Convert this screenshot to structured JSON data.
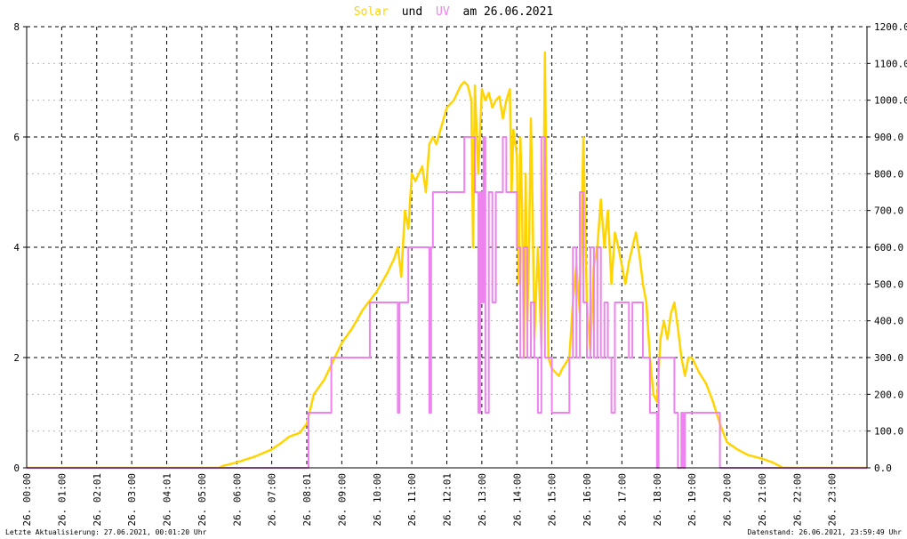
{
  "title": {
    "solar": "Solar",
    "und": "und",
    "uv": "UV",
    "rest": "am 26.06.2021"
  },
  "footer": {
    "left": "Letzte Aktualisierung: 27.06.2021, 00:01:20 Uhr",
    "right": "Datenstand: 26.06.2021, 23:59:49 Uhr"
  },
  "colors": {
    "solar": "#ffd400",
    "uv": "#ee82ee",
    "grid": "#000000",
    "minor_grid": "#bbbbbb"
  },
  "chart_data": {
    "type": "line",
    "y_left": {
      "ticks": [
        "0",
        "2",
        "4",
        "6",
        "8"
      ],
      "range": [
        0,
        8
      ]
    },
    "y_right": {
      "ticks": [
        "0.0",
        "100.0",
        "200.0",
        "300.0",
        "400.0",
        "500.0",
        "600.0",
        "700.0",
        "800.0",
        "900.0",
        "1000.0",
        "1100.0",
        "1200.0"
      ],
      "range": [
        0,
        1200
      ]
    },
    "x_range_hours": [
      0,
      24
    ],
    "x_ticks": [
      {
        "h": 0,
        "label": "26. 00:00"
      },
      {
        "h": 1,
        "label": "26. 01:00"
      },
      {
        "h": 2,
        "label": "26. 02:01"
      },
      {
        "h": 3,
        "label": "26. 03:00"
      },
      {
        "h": 4,
        "label": "26. 04:01"
      },
      {
        "h": 5,
        "label": "26. 05:00"
      },
      {
        "h": 6,
        "label": "26. 06:00"
      },
      {
        "h": 7,
        "label": "26. 07:00"
      },
      {
        "h": 8,
        "label": "26. 08:01"
      },
      {
        "h": 9,
        "label": "26. 09:00"
      },
      {
        "h": 10,
        "label": "26. 10:00"
      },
      {
        "h": 11,
        "label": "26. 11:00"
      },
      {
        "h": 12,
        "label": "26. 12:01"
      },
      {
        "h": 13,
        "label": "26. 13:00"
      },
      {
        "h": 14,
        "label": "26. 14:00"
      },
      {
        "h": 15,
        "label": "26. 15:00"
      },
      {
        "h": 16,
        "label": "26. 16:00"
      },
      {
        "h": 17,
        "label": "26. 17:00"
      },
      {
        "h": 18,
        "label": "26. 18:00"
      },
      {
        "h": 19,
        "label": "26. 19:00"
      },
      {
        "h": 20,
        "label": "26. 20:00"
      },
      {
        "h": 21,
        "label": "26. 21:00"
      },
      {
        "h": 22,
        "label": "26. 22:00"
      },
      {
        "h": 23,
        "label": "26. 23:00"
      }
    ],
    "series": [
      {
        "name": "Solar",
        "axis": "right",
        "points": [
          [
            0,
            0
          ],
          [
            5.5,
            0
          ],
          [
            5.6,
            5
          ],
          [
            6,
            15
          ],
          [
            6.5,
            30
          ],
          [
            7,
            50
          ],
          [
            7.3,
            70
          ],
          [
            7.5,
            85
          ],
          [
            7.8,
            95
          ],
          [
            8,
            120
          ],
          [
            8.2,
            200
          ],
          [
            8.5,
            240
          ],
          [
            8.8,
            300
          ],
          [
            9,
            340
          ],
          [
            9.3,
            380
          ],
          [
            9.6,
            430
          ],
          [
            10,
            480
          ],
          [
            10.3,
            530
          ],
          [
            10.5,
            570
          ],
          [
            10.6,
            600
          ],
          [
            10.7,
            520
          ],
          [
            10.8,
            700
          ],
          [
            10.9,
            650
          ],
          [
            11,
            800
          ],
          [
            11.1,
            780
          ],
          [
            11.3,
            820
          ],
          [
            11.4,
            750
          ],
          [
            11.5,
            880
          ],
          [
            11.6,
            900
          ],
          [
            11.7,
            880
          ],
          [
            12,
            980
          ],
          [
            12.2,
            1000
          ],
          [
            12.3,
            1020
          ],
          [
            12.4,
            1040
          ],
          [
            12.5,
            1050
          ],
          [
            12.6,
            1040
          ],
          [
            12.7,
            1000
          ],
          [
            12.75,
            600
          ],
          [
            12.8,
            1040
          ],
          [
            12.9,
            800
          ],
          [
            13,
            1030
          ],
          [
            13.1,
            1000
          ],
          [
            13.2,
            1020
          ],
          [
            13.3,
            980
          ],
          [
            13.4,
            1000
          ],
          [
            13.5,
            1010
          ],
          [
            13.6,
            950
          ],
          [
            13.7,
            1000
          ],
          [
            13.8,
            1030
          ],
          [
            13.85,
            750
          ],
          [
            13.9,
            920
          ],
          [
            14,
            850
          ],
          [
            14.05,
            500
          ],
          [
            14.1,
            900
          ],
          [
            14.15,
            700
          ],
          [
            14.2,
            300
          ],
          [
            14.25,
            800
          ],
          [
            14.3,
            400
          ],
          [
            14.35,
            600
          ],
          [
            14.4,
            950
          ],
          [
            14.45,
            700
          ],
          [
            14.5,
            350
          ],
          [
            14.6,
            600
          ],
          [
            14.7,
            330
          ],
          [
            14.75,
            600
          ],
          [
            14.8,
            1130
          ],
          [
            14.85,
            700
          ],
          [
            14.9,
            300
          ],
          [
            15,
            270
          ],
          [
            15.2,
            250
          ],
          [
            15.3,
            270
          ],
          [
            15.5,
            300
          ],
          [
            15.6,
            450
          ],
          [
            15.7,
            550
          ],
          [
            15.8,
            420
          ],
          [
            15.9,
            900
          ],
          [
            16,
            450
          ],
          [
            16.1,
            320
          ],
          [
            16.2,
            550
          ],
          [
            16.3,
            600
          ],
          [
            16.4,
            730
          ],
          [
            16.5,
            600
          ],
          [
            16.6,
            700
          ],
          [
            16.7,
            500
          ],
          [
            16.8,
            640
          ],
          [
            16.9,
            600
          ],
          [
            17,
            550
          ],
          [
            17.1,
            500
          ],
          [
            17.2,
            560
          ],
          [
            17.3,
            600
          ],
          [
            17.4,
            640
          ],
          [
            17.5,
            580
          ],
          [
            17.6,
            500
          ],
          [
            17.7,
            450
          ],
          [
            17.8,
            300
          ],
          [
            17.9,
            200
          ],
          [
            18,
            180
          ],
          [
            18.1,
            350
          ],
          [
            18.2,
            400
          ],
          [
            18.3,
            350
          ],
          [
            18.4,
            420
          ],
          [
            18.5,
            450
          ],
          [
            18.6,
            380
          ],
          [
            18.7,
            300
          ],
          [
            18.8,
            250
          ],
          [
            18.9,
            300
          ],
          [
            19,
            300
          ],
          [
            19.2,
            260
          ],
          [
            19.4,
            230
          ],
          [
            19.6,
            180
          ],
          [
            19.8,
            120
          ],
          [
            20,
            70
          ],
          [
            20.3,
            50
          ],
          [
            20.6,
            35
          ],
          [
            21,
            25
          ],
          [
            21.3,
            15
          ],
          [
            21.5,
            5
          ],
          [
            21.6,
            0
          ],
          [
            24,
            0
          ]
        ]
      },
      {
        "name": "UV",
        "axis": "left",
        "points": [
          [
            0,
            0
          ],
          [
            8.05,
            0
          ],
          [
            8.05,
            1
          ],
          [
            8.7,
            1
          ],
          [
            8.7,
            2
          ],
          [
            9.8,
            2
          ],
          [
            9.8,
            3
          ],
          [
            10.6,
            3
          ],
          [
            10.6,
            1
          ],
          [
            10.65,
            1
          ],
          [
            10.65,
            3
          ],
          [
            10.9,
            3
          ],
          [
            10.9,
            4
          ],
          [
            11.5,
            4
          ],
          [
            11.5,
            1
          ],
          [
            11.55,
            1
          ],
          [
            11.55,
            4
          ],
          [
            11.6,
            4
          ],
          [
            11.6,
            5
          ],
          [
            12.5,
            5
          ],
          [
            12.5,
            6
          ],
          [
            12.8,
            6
          ],
          [
            12.8,
            5
          ],
          [
            12.9,
            5
          ],
          [
            12.9,
            1
          ],
          [
            12.95,
            1
          ],
          [
            12.95,
            5
          ],
          [
            13,
            5
          ],
          [
            13,
            3
          ],
          [
            13.05,
            3
          ],
          [
            13.05,
            6
          ],
          [
            13.1,
            6
          ],
          [
            13.1,
            1
          ],
          [
            13.2,
            1
          ],
          [
            13.2,
            5
          ],
          [
            13.3,
            5
          ],
          [
            13.3,
            3
          ],
          [
            13.4,
            3
          ],
          [
            13.4,
            5
          ],
          [
            13.6,
            5
          ],
          [
            13.6,
            6
          ],
          [
            13.7,
            6
          ],
          [
            13.7,
            5
          ],
          [
            14,
            5
          ],
          [
            14,
            4
          ],
          [
            14.1,
            4
          ],
          [
            14.1,
            2
          ],
          [
            14.2,
            2
          ],
          [
            14.2,
            4
          ],
          [
            14.3,
            4
          ],
          [
            14.3,
            2
          ],
          [
            14.4,
            2
          ],
          [
            14.4,
            3
          ],
          [
            14.5,
            3
          ],
          [
            14.5,
            2
          ],
          [
            14.6,
            2
          ],
          [
            14.6,
            1
          ],
          [
            14.7,
            1
          ],
          [
            14.7,
            6
          ],
          [
            14.8,
            6
          ],
          [
            14.8,
            2
          ],
          [
            15,
            2
          ],
          [
            15,
            1
          ],
          [
            15.5,
            1
          ],
          [
            15.5,
            2
          ],
          [
            15.6,
            2
          ],
          [
            15.6,
            4
          ],
          [
            15.7,
            4
          ],
          [
            15.7,
            2
          ],
          [
            15.8,
            2
          ],
          [
            15.8,
            5
          ],
          [
            15.9,
            5
          ],
          [
            15.9,
            3
          ],
          [
            16,
            3
          ],
          [
            16,
            2
          ],
          [
            16.1,
            2
          ],
          [
            16.1,
            4
          ],
          [
            16.2,
            4
          ],
          [
            16.2,
            2
          ],
          [
            16.3,
            2
          ],
          [
            16.3,
            4
          ],
          [
            16.4,
            4
          ],
          [
            16.4,
            2
          ],
          [
            16.5,
            2
          ],
          [
            16.5,
            3
          ],
          [
            16.6,
            3
          ],
          [
            16.6,
            2
          ],
          [
            16.7,
            2
          ],
          [
            16.7,
            1
          ],
          [
            16.8,
            1
          ],
          [
            16.8,
            3
          ],
          [
            17.2,
            3
          ],
          [
            17.2,
            2
          ],
          [
            17.3,
            2
          ],
          [
            17.3,
            3
          ],
          [
            17.6,
            3
          ],
          [
            17.6,
            2
          ],
          [
            17.8,
            2
          ],
          [
            17.8,
            1
          ],
          [
            18,
            1
          ],
          [
            18,
            0
          ],
          [
            18.05,
            0
          ],
          [
            18.05,
            2
          ],
          [
            18.5,
            2
          ],
          [
            18.5,
            1
          ],
          [
            18.6,
            1
          ],
          [
            18.6,
            0
          ],
          [
            18.7,
            0
          ],
          [
            18.7,
            1
          ],
          [
            18.75,
            1
          ],
          [
            18.75,
            0
          ],
          [
            18.8,
            0
          ],
          [
            18.8,
            1
          ],
          [
            19.8,
            1
          ],
          [
            19.8,
            0
          ],
          [
            24,
            0
          ]
        ]
      }
    ]
  }
}
